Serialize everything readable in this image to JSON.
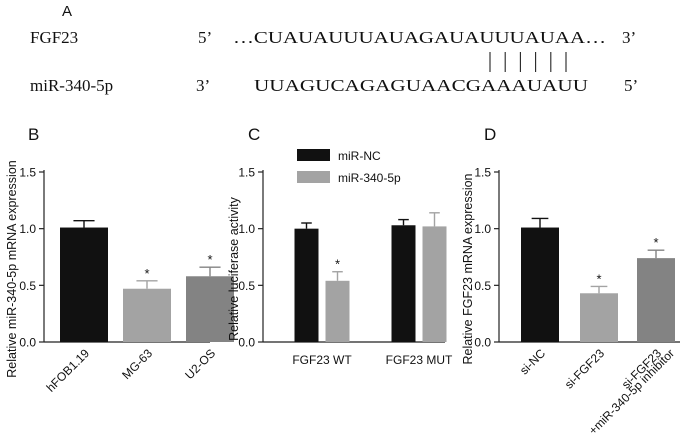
{
  "panel_a": {
    "letter": "A",
    "gene_name": "FGF23",
    "gene_five": "5’",
    "gene_sequence": "…CUAUAUUUAUAGAUAUUUAUAA…",
    "gene_three": "3’",
    "mirna_name": "miR-340-5p",
    "mirna_three": "3’",
    "mirna_sequence": "UUAGUCAGAGUAACGAAAUAUU",
    "mirna_five": "5’",
    "pairing_count": 6
  },
  "colors": {
    "black_bar": "#111111",
    "light_gray_bar": "#a3a3a3",
    "mid_gray_bar": "#838383",
    "axis": "#222222"
  },
  "chart_data": [
    {
      "panel": "B",
      "type": "bar",
      "ylabel": "Relative miR-340-5p mRNA expression",
      "ylim": [
        0,
        1.5
      ],
      "yticks": [
        "0.0",
        "0.5",
        "1.0",
        "1.5"
      ],
      "categories": [
        "hFOB1.19",
        "MG-63",
        "U2-OS"
      ],
      "values": [
        1.01,
        0.47,
        0.58
      ],
      "errors": [
        0.06,
        0.07,
        0.08
      ],
      "significance": [
        "",
        "*",
        "*"
      ],
      "bar_colors": [
        "#111111",
        "#a3a3a3",
        "#838383"
      ]
    },
    {
      "panel": "C",
      "type": "bar",
      "ylabel": "Relative luciferase activity",
      "ylim": [
        0,
        1.5
      ],
      "yticks": [
        "0.0",
        "0.5",
        "1.0",
        "1.5"
      ],
      "categories": [
        "FGF23 WT",
        "FGF23 MUT"
      ],
      "legend": "top-left",
      "series": [
        {
          "name": "miR-NC",
          "values": [
            1.0,
            1.03
          ],
          "errors": [
            0.05,
            0.05
          ],
          "significance": [
            "",
            ""
          ],
          "color": "#111111"
        },
        {
          "name": "miR-340-5p",
          "values": [
            0.54,
            1.02
          ],
          "errors": [
            0.08,
            0.12
          ],
          "significance": [
            "*",
            ""
          ],
          "color": "#a3a3a3"
        }
      ]
    },
    {
      "panel": "D",
      "type": "bar",
      "ylabel": "Relative FGF23 mRNA expression",
      "ylim": [
        0,
        1.5
      ],
      "yticks": [
        "0.0",
        "0.5",
        "1.0",
        "1.5"
      ],
      "categories": [
        "si-NC",
        "si-FGF23",
        "si-FGF23\n+miR-340-5p inhibitor"
      ],
      "values": [
        1.01,
        0.43,
        0.74
      ],
      "errors": [
        0.08,
        0.06,
        0.07
      ],
      "significance": [
        "",
        "*",
        "*"
      ],
      "bar_colors": [
        "#111111",
        "#a3a3a3",
        "#838383"
      ]
    }
  ]
}
